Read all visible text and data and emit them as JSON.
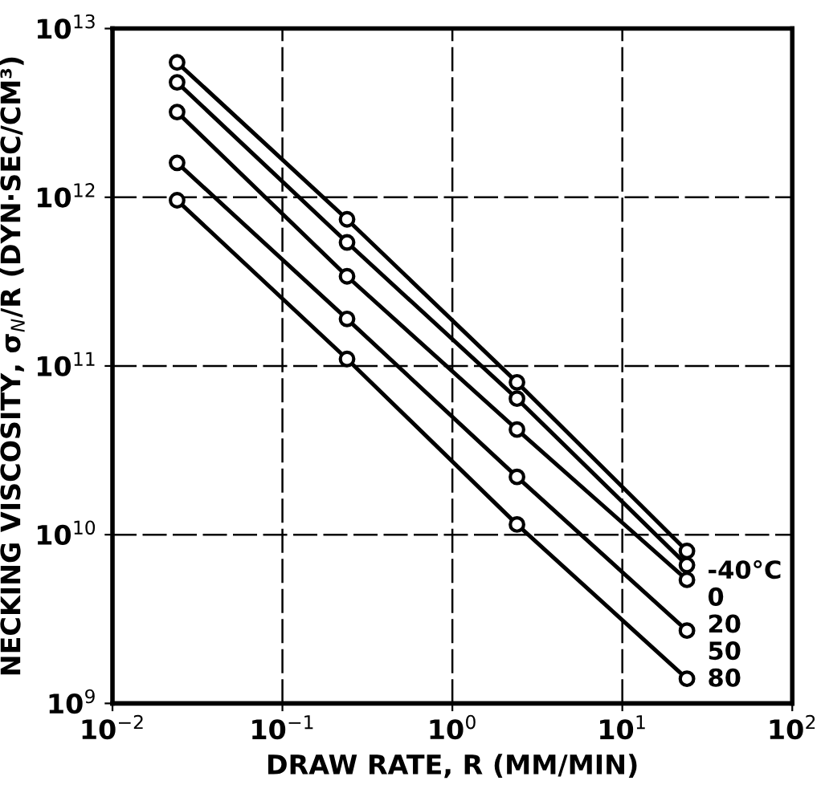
{
  "chart_data": {
    "type": "line",
    "xlabel": "DRAW RATE, R (MM/MIN)",
    "ylabel": "NECKING VISCOSITY, σ$_{N}$/R (DYN·SEC/CM³)",
    "x": [
      0.024,
      0.24,
      2.4,
      24
    ],
    "log": "xy",
    "grid": true,
    "marker": "circle",
    "line_style": "solid",
    "legend": false,
    "xlim": [
      0.01,
      100
    ],
    "ylim": [
      1000000000.0,
      10000000000000.0
    ],
    "xticks": [
      {
        "value": 0.01,
        "label": "10$^{−2}$"
      },
      {
        "value": 0.1,
        "label": "10$^{−1}$"
      },
      {
        "value": 1,
        "label": "10$^{0}$"
      },
      {
        "value": 10,
        "label": "10$^{1}$"
      },
      {
        "value": 100,
        "label": "10$^{2}$"
      }
    ],
    "yticks": [
      {
        "value": 1000000000.0,
        "label": "10$^{9}$"
      },
      {
        "value": 10000000000.0,
        "label": "10$^{10}$"
      },
      {
        "value": 100000000000.0,
        "label": "10$^{11}$"
      },
      {
        "value": 1000000000000.0,
        "label": "10$^{12}$"
      },
      {
        "value": 10000000000000.0,
        "label": "10$^{13}$"
      }
    ],
    "series": [
      {
        "name": "-40°C",
        "color": "#000000",
        "values": [
          6300000000000.0,
          740000000000.0,
          80000000000.0,
          8000000000.0
        ]
      },
      {
        "name": "0",
        "color": "#000000",
        "values": [
          4800000000000.0,
          540000000000.0,
          64000000000.0,
          6600000000.0
        ]
      },
      {
        "name": "20",
        "color": "#000000",
        "values": [
          3200000000000.0,
          340000000000.0,
          42000000000.0,
          5400000000.0
        ]
      },
      {
        "name": "50",
        "color": "#000000",
        "values": [
          1600000000000.0,
          190000000000.0,
          22000000000.0,
          2700000000.0
        ]
      },
      {
        "name": "80",
        "color": "#000000",
        "values": [
          960000000000.0,
          110000000000.0,
          11500000000.0,
          1400000000.0
        ]
      }
    ]
  }
}
